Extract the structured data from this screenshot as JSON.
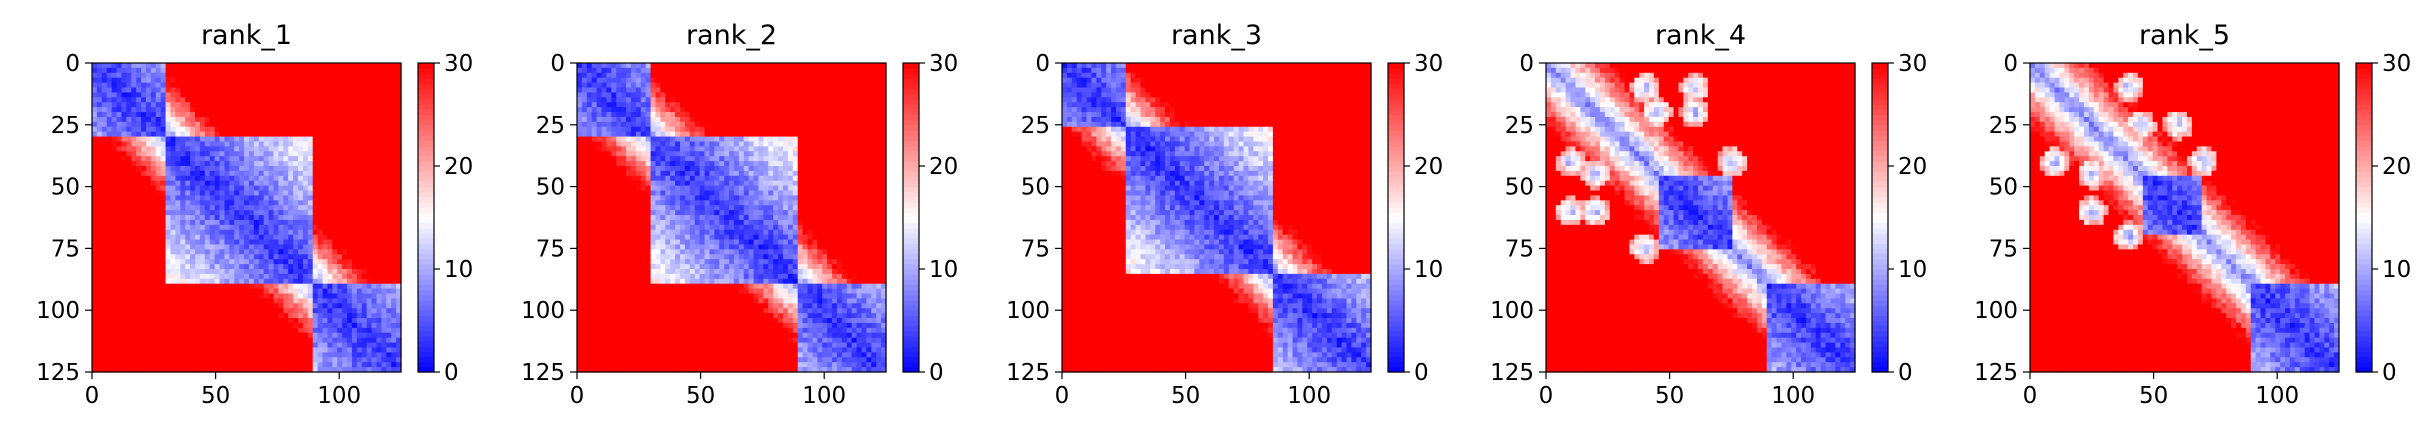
{
  "chart_data": [
    {
      "type": "heatmap",
      "title": "rank_1",
      "x_ticks": [
        0,
        50,
        100
      ],
      "y_ticks": [
        0,
        25,
        50,
        75,
        100,
        125
      ],
      "xlim": [
        0,
        125
      ],
      "ylim": [
        125,
        0
      ],
      "colorbar": {
        "ticks": [
          0,
          10,
          20,
          30
        ],
        "range": [
          0,
          30
        ],
        "colormap": "bwr"
      },
      "domains": [
        [
          0,
          30
        ],
        [
          30,
          90
        ],
        [
          90,
          125
        ]
      ],
      "contacts": []
    },
    {
      "type": "heatmap",
      "title": "rank_2",
      "x_ticks": [
        0,
        50,
        100
      ],
      "y_ticks": [
        0,
        25,
        50,
        75,
        100,
        125
      ],
      "xlim": [
        0,
        125
      ],
      "ylim": [
        125,
        0
      ],
      "colorbar": {
        "ticks": [
          0,
          10,
          20,
          30
        ],
        "range": [
          0,
          30
        ],
        "colormap": "bwr"
      },
      "domains": [
        [
          0,
          30
        ],
        [
          30,
          90
        ],
        [
          90,
          125
        ]
      ],
      "contacts": []
    },
    {
      "type": "heatmap",
      "title": "rank_3",
      "x_ticks": [
        0,
        50,
        100
      ],
      "y_ticks": [
        0,
        25,
        50,
        75,
        100,
        125
      ],
      "xlim": [
        0,
        125
      ],
      "ylim": [
        125,
        0
      ],
      "colorbar": {
        "ticks": [
          0,
          10,
          20,
          30
        ],
        "range": [
          0,
          30
        ],
        "colormap": "bwr"
      },
      "domains": [
        [
          0,
          25
        ],
        [
          25,
          85
        ],
        [
          85,
          125
        ]
      ],
      "contacts": []
    },
    {
      "type": "heatmap",
      "title": "rank_4",
      "x_ticks": [
        0,
        50,
        100
      ],
      "y_ticks": [
        0,
        25,
        50,
        75,
        100,
        125
      ],
      "xlim": [
        0,
        125
      ],
      "ylim": [
        125,
        0
      ],
      "colorbar": {
        "ticks": [
          0,
          10,
          20,
          30
        ],
        "range": [
          0,
          30
        ],
        "colormap": "bwr"
      },
      "domains": [
        [
          45,
          75
        ],
        [
          90,
          125
        ]
      ],
      "contacts": [
        [
          20,
          60
        ],
        [
          10,
          40
        ],
        [
          75,
          40
        ],
        [
          45,
          20
        ],
        [
          60,
          10
        ]
      ]
    },
    {
      "type": "heatmap",
      "title": "rank_5",
      "x_ticks": [
        0,
        50,
        100
      ],
      "y_ticks": [
        0,
        25,
        50,
        75,
        100,
        125
      ],
      "xlim": [
        0,
        125
      ],
      "ylim": [
        125,
        0
      ],
      "colorbar": {
        "ticks": [
          0,
          10,
          20,
          30
        ],
        "range": [
          0,
          30
        ],
        "colormap": "bwr"
      },
      "domains": [
        [
          45,
          70
        ],
        [
          90,
          125
        ]
      ],
      "contacts": [
        [
          25,
          60
        ],
        [
          10,
          40
        ],
        [
          70,
          40
        ],
        [
          45,
          25
        ]
      ]
    }
  ]
}
